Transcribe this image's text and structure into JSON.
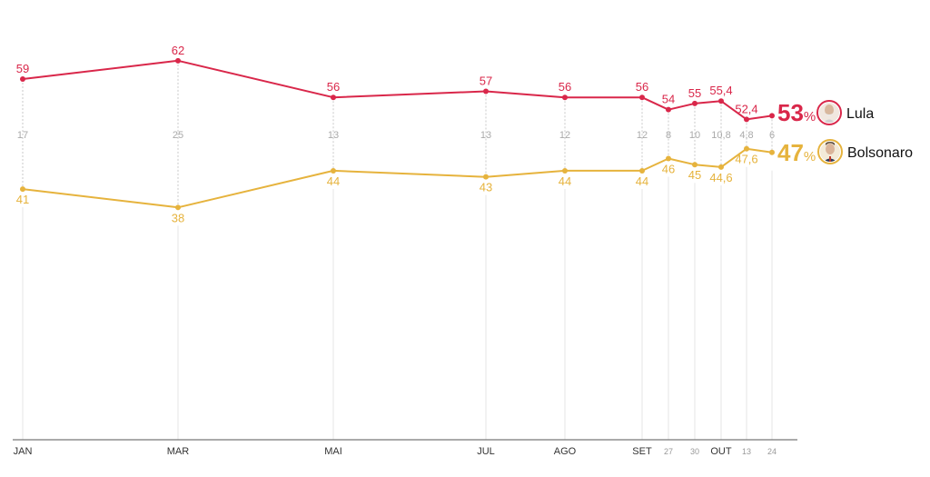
{
  "chart_data": {
    "type": "line",
    "title": "",
    "xlabel": "",
    "ylabel": "",
    "ylim": [
      0,
      70
    ],
    "x": [
      "JAN",
      "MAR",
      "MAI",
      "JUL",
      "AGO",
      "SET",
      "27",
      "30",
      "OUT",
      "13",
      "24"
    ],
    "major_ticks": [
      true,
      true,
      true,
      true,
      true,
      true,
      false,
      false,
      true,
      false,
      false
    ],
    "series": [
      {
        "name": "Lula",
        "color": "#d9274a",
        "values": [
          59,
          62,
          56,
          57,
          56,
          56,
          54,
          55,
          55.4,
          52.4,
          53
        ],
        "labels": [
          "59",
          "62",
          "56",
          "57",
          "56",
          "56",
          "54",
          "55",
          "55,4",
          "52,4",
          ""
        ],
        "final_value": "53",
        "final_suffix": "%"
      },
      {
        "name": "Bolsonaro",
        "color": "#e6b33d",
        "values": [
          41,
          38,
          44,
          43,
          44,
          44,
          46,
          45,
          44.6,
          47.6,
          47
        ],
        "labels": [
          "41",
          "38",
          "44",
          "43",
          "44",
          "44",
          "46",
          "45",
          "44,6",
          "47,6",
          ""
        ],
        "final_value": "47",
        "final_suffix": "%"
      }
    ],
    "gaps": [
      "17",
      "25",
      "13",
      "13",
      "12",
      "12",
      "8",
      "10",
      "10,8",
      "4,8",
      "6"
    ],
    "grid": false,
    "legend": "right"
  }
}
